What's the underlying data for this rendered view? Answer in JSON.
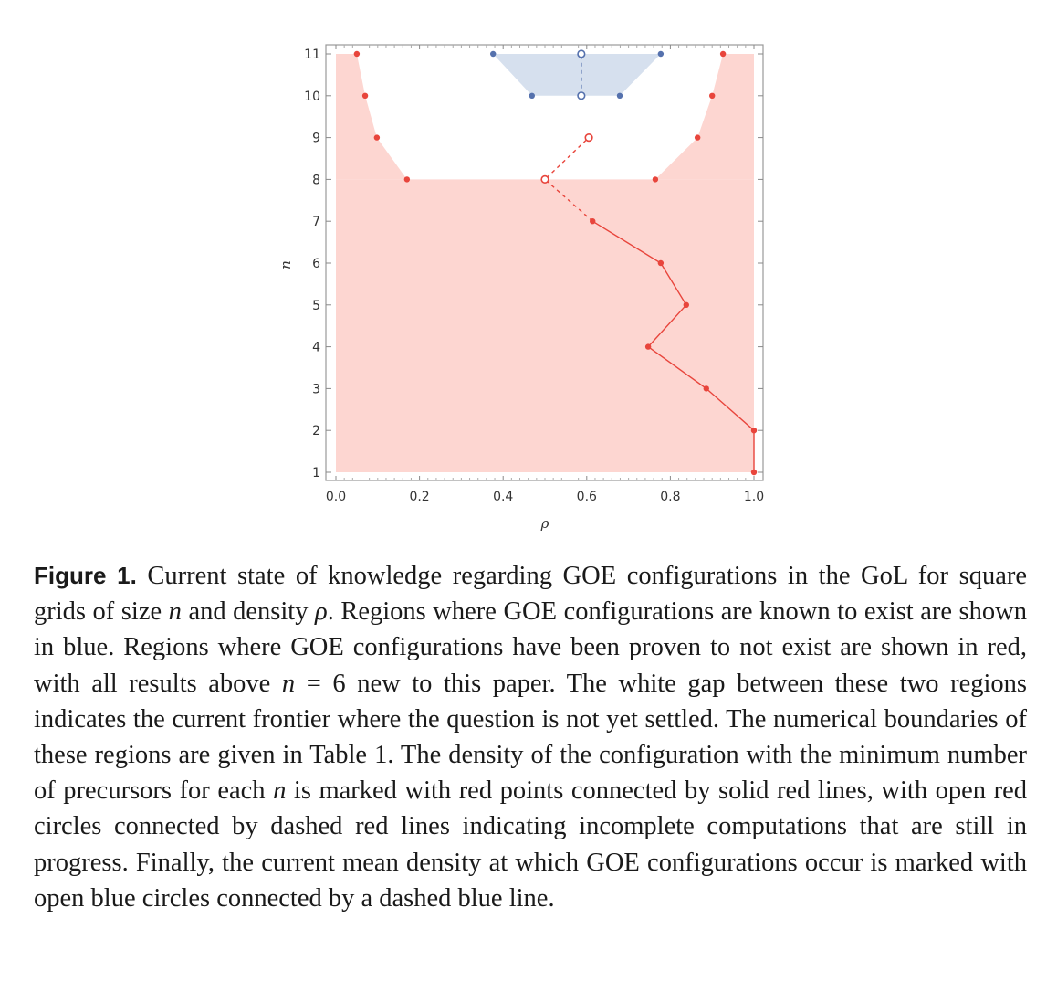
{
  "chart_data": {
    "type": "area",
    "xlabel": "ρ",
    "ylabel": "n",
    "xlim": [
      0.0,
      1.0
    ],
    "ylim": [
      1,
      11
    ],
    "xticks": [
      "0.0",
      "0.2",
      "0.4",
      "0.6",
      "0.8",
      "1.0"
    ],
    "yticks": [
      "1",
      "2",
      "3",
      "4",
      "5",
      "6",
      "7",
      "8",
      "9",
      "10",
      "11"
    ],
    "grid": false,
    "colors": {
      "red_fill": "#fdd6d1",
      "red": "#e8453c",
      "blue_fill": "#d6e0ee",
      "blue": "#5571ad"
    },
    "red_region_left": [
      {
        "n": 8,
        "rho": 0.17
      },
      {
        "n": 9,
        "rho": 0.098
      },
      {
        "n": 10,
        "rho": 0.07
      },
      {
        "n": 11,
        "rho": 0.05
      }
    ],
    "red_region_right": [
      {
        "n": 8,
        "rho": 0.764
      },
      {
        "n": 9,
        "rho": 0.865
      },
      {
        "n": 10,
        "rho": 0.9
      },
      {
        "n": 11,
        "rho": 0.926
      }
    ],
    "red_region_full_up_to_n": 8,
    "blue_region": [
      {
        "n": 10,
        "rho_min": 0.469,
        "rho_max": 0.679
      },
      {
        "n": 11,
        "rho_min": 0.376,
        "rho_max": 0.777
      }
    ],
    "blue_mean_density": [
      {
        "n": 10,
        "rho": 0.587
      },
      {
        "n": 11,
        "rho": 0.587
      }
    ],
    "min_precursor_solid": [
      {
        "n": 1,
        "rho": 1.0
      },
      {
        "n": 2,
        "rho": 1.0
      },
      {
        "n": 3,
        "rho": 0.886
      },
      {
        "n": 4,
        "rho": 0.747
      },
      {
        "n": 5,
        "rho": 0.838
      },
      {
        "n": 6,
        "rho": 0.777
      },
      {
        "n": 7,
        "rho": 0.614
      }
    ],
    "min_precursor_in_progress": [
      {
        "n": 8,
        "rho": 0.5
      },
      {
        "n": 9,
        "rho": 0.605
      }
    ]
  },
  "caption": {
    "label": "Figure 1.",
    "t1": " Current state of knowledge regarding GOE configurations in the GoL for square grids of size ",
    "n1": "n",
    "t2": " and density ",
    "rho": "ρ",
    "t3": ". Regions where GOE configurations are known to exist are shown in blue. Regions where GOE configurations have been proven to not exist are shown in red, with all results above ",
    "n2": "n",
    "t4": " = 6 new to this paper. The white gap between these two regions indicates the current frontier where the question is not yet settled. The numerical boundaries of these regions are given in Table 1. The density of the configuration with the minimum number of precursors for each ",
    "n3": "n",
    "t5": " is marked with red points connected by solid red lines, with open red circles connected by dashed red lines indicating incomplete computations that are still in progress. Finally, the current mean density at which GOE configurations occur is marked with open blue circles connected by a dashed blue line."
  }
}
